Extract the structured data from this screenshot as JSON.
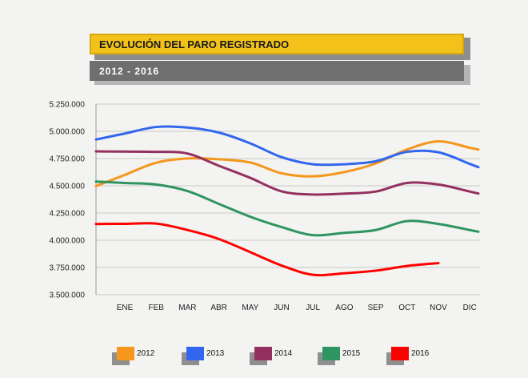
{
  "header": {
    "title": "EVOLUCIÓN DEL PARO REGISTRADO",
    "subtitle": "2012 - 2016"
  },
  "chart_data": {
    "type": "line",
    "title": "EVOLUCIÓN DEL PARO REGISTRADO",
    "subtitle": "2012 - 2016",
    "xlabel": "",
    "ylabel": "",
    "categories": [
      "ENE",
      "FEB",
      "MAR",
      "ABR",
      "MAY",
      "JUN",
      "JUL",
      "AGO",
      "SEP",
      "OCT",
      "NOV",
      "DIC"
    ],
    "y_ticks": [
      3500000,
      3750000,
      4000000,
      4250000,
      4500000,
      4750000,
      5000000,
      5250000
    ],
    "y_tick_labels": [
      "3.500.000",
      "3.750.000",
      "4.000.000",
      "4.250.000",
      "4.500.000",
      "4.750.000",
      "5.000.000",
      "5.250.000"
    ],
    "ylim": [
      3500000,
      5250000
    ],
    "grid": true,
    "legend": "bottom",
    "series": [
      {
        "name": "2012",
        "color": "#f5961d",
        "values": [
          4600000,
          4712000,
          4751000,
          4744000,
          4714000,
          4615000,
          4587000,
          4626000,
          4705000,
          4833000,
          4908000,
          4849000
        ]
      },
      {
        "name": "2013",
        "color": "#3366ee",
        "values": [
          4980000,
          5040000,
          5035000,
          4989000,
          4890000,
          4763000,
          4698000,
          4698000,
          4725000,
          4812000,
          4808000,
          4701000
        ]
      },
      {
        "name": "2014",
        "color": "#943060",
        "values": [
          4814000,
          4812000,
          4796000,
          4684000,
          4573000,
          4449000,
          4420000,
          4428000,
          4447000,
          4526000,
          4512000,
          4447000
        ]
      },
      {
        "name": "2015",
        "color": "#2e9460",
        "values": [
          4526000,
          4512000,
          4452000,
          4334000,
          4216000,
          4121000,
          4047000,
          4068000,
          4094000,
          4176000,
          4150000,
          4094000
        ]
      },
      {
        "name": "2016",
        "color": "#ff0000",
        "values": [
          4151000,
          4153000,
          4094000,
          4011000,
          3891000,
          3768000,
          3683000,
          3697000,
          3721000,
          3764000,
          3790000,
          null
        ]
      }
    ]
  }
}
